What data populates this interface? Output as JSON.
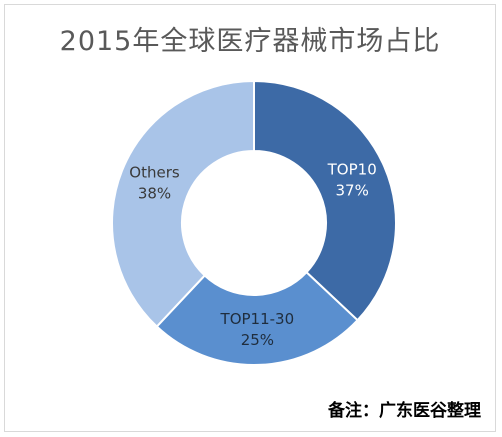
{
  "chart_data": {
    "type": "pie",
    "title": "2015年全球医疗器械市场占比",
    "donut": true,
    "slices": [
      {
        "label": "TOP10",
        "percent_label": "37%",
        "value": 37,
        "color": "#3d6aa6",
        "text_color": "#ffffff"
      },
      {
        "label": "TOP11-30",
        "percent_label": "25%",
        "value": 25,
        "color": "#5a8fcf",
        "text_color": "#1f2d3d"
      },
      {
        "label": "Others",
        "percent_label": "38%",
        "value": 38,
        "color": "#a9c4e8",
        "text_color": "#3a3a3a"
      }
    ],
    "legend": "none"
  },
  "note": "备注：广东医谷整理"
}
